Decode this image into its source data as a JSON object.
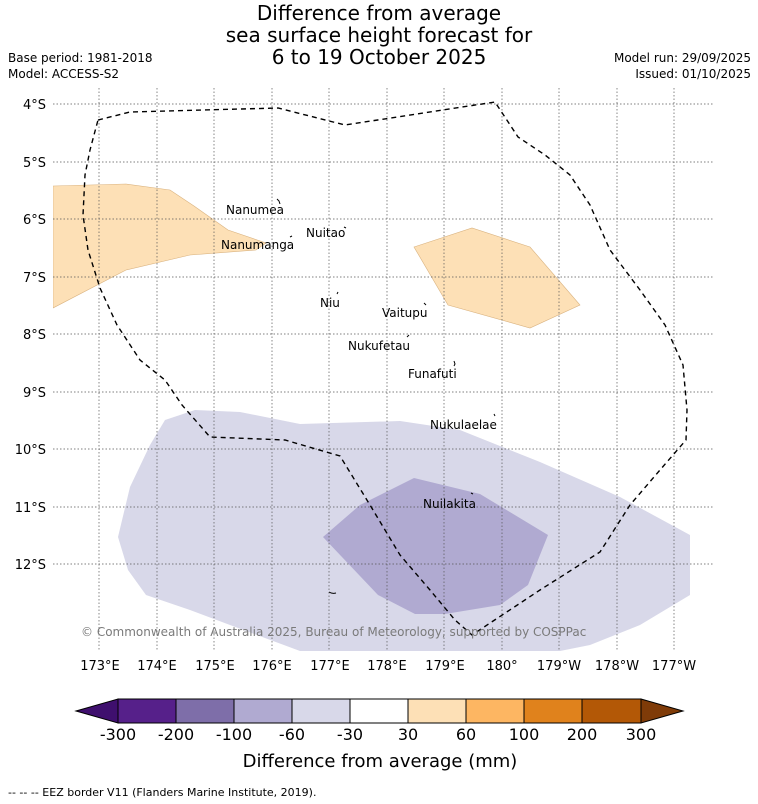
{
  "title": {
    "line1": "Difference from average",
    "line2": "sea surface height forecast for",
    "line3": "6 to 19 October 2025"
  },
  "meta": {
    "base_period": "Base period: 1981-2018",
    "model": "Model: ACCESS-S2",
    "model_run": "Model run: 29/09/2025",
    "issued": "Issued: 01/10/2025"
  },
  "map": {
    "lat_labels": [
      "4°S",
      "5°S",
      "6°S",
      "7°S",
      "8°S",
      "9°S",
      "10°S",
      "11°S",
      "12°S"
    ],
    "lon_labels": [
      "173°E",
      "174°E",
      "175°E",
      "176°E",
      "177°E",
      "178°E",
      "179°E",
      "180°",
      "179°W",
      "178°W",
      "177°W"
    ],
    "islands": [
      "Nanumea",
      "Nuitao",
      "Nanumanga",
      "Niu",
      "Vaitupu",
      "Nukufetau",
      "Funafuti",
      "Nukulaelae",
      "Nuilakita"
    ],
    "copyright": "© Commonwealth of Australia 2025, Bureau of Meteorology, supported by COSPPac",
    "colors": {
      "anom_pos_30_60": "#fde0b6",
      "anom_neg_60_30": "#d8d8e9",
      "anom_neg_100_60": "#b0aad1",
      "eez_border": "#000000"
    }
  },
  "colorbar": {
    "ticks": [
      "-300",
      "-200",
      "-100",
      "-60",
      "-30",
      "30",
      "60",
      "100",
      "200",
      "300"
    ],
    "colors": [
      "#3f0f6e",
      "#56208a",
      "#7e6ea9",
      "#b0aad1",
      "#d8d8e9",
      "#ffffff",
      "#fde0b6",
      "#fdb662",
      "#e0821c",
      "#b35806",
      "#7f3b08"
    ],
    "title": "Difference from average (mm)"
  },
  "legend_note": "--  --  -- EEZ border V11 (Flanders Marine Institute, 2019)."
}
